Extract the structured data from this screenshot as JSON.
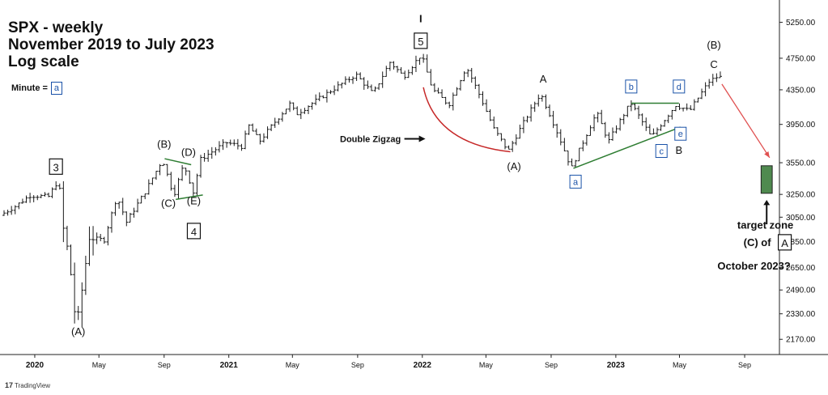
{
  "info": {
    "line1": "SPX - weekly",
    "line2": "November 2019 to July 2023",
    "line3": "Log scale",
    "minute_label": "Minute =",
    "minute_box": "a"
  },
  "colors": {
    "bars": "#1a1a1a",
    "green_line": "#2e7d32",
    "red_arc": "#c62828",
    "red_arrow": "#e05050",
    "target_box": "#4f8a4f",
    "blue_box": "#1a52a8"
  },
  "icons": {
    "double_zigzag_arrow": "arrow-right",
    "target_arrow": "arrow-up",
    "logo": "tradingview-logo"
  },
  "footer": {
    "logo_text": "TradingView",
    "logo_mark": "17"
  },
  "chart_data": {
    "type": "ohlc",
    "title": "SPX - weekly",
    "subtitle": "November 2019 to July 2023",
    "y_scale": "log",
    "ylim": [
      2080,
      5450
    ],
    "y_ticks": [
      "5250.00",
      "4750.00",
      "4350.00",
      "3950.00",
      "3550.00",
      "3250.00",
      "3050.00",
      "2850.00",
      "2650.00",
      "2490.00",
      "2330.00",
      "2170.00"
    ],
    "x_ticks": [
      {
        "label": "2020",
        "date": "2020-01-01"
      },
      {
        "label": "May",
        "date": "2020-05-01"
      },
      {
        "label": "Sep",
        "date": "2020-09-01"
      },
      {
        "label": "2021",
        "date": "2021-01-01"
      },
      {
        "label": "May",
        "date": "2021-05-01"
      },
      {
        "label": "Sep",
        "date": "2021-09-01"
      },
      {
        "label": "2022",
        "date": "2022-01-01"
      },
      {
        "label": "May",
        "date": "2022-05-01"
      },
      {
        "label": "Sep",
        "date": "2022-09-01"
      },
      {
        "label": "2023",
        "date": "2023-01-01"
      },
      {
        "label": "May",
        "date": "2023-05-01"
      },
      {
        "label": "Sep",
        "date": "2023-09-01"
      }
    ],
    "grid": false,
    "price_path": [
      [
        "2019-11-01",
        3066
      ],
      [
        "2019-12-01",
        3150
      ],
      [
        "2019-12-27",
        3240
      ],
      [
        "2020-01-31",
        3230
      ],
      [
        "2020-02-19",
        3386
      ],
      [
        "2020-02-28",
        2954
      ],
      [
        "2020-03-09",
        2746
      ],
      [
        "2020-03-23",
        2237
      ],
      [
        "2020-04-03",
        2489
      ],
      [
        "2020-04-17",
        2875
      ],
      [
        "2020-05-15",
        2863
      ],
      [
        "2020-06-08",
        3232
      ],
      [
        "2020-06-26",
        3009
      ],
      [
        "2020-07-31",
        3271
      ],
      [
        "2020-09-02",
        3580
      ],
      [
        "2020-09-23",
        3237
      ],
      [
        "2020-10-12",
        3534
      ],
      [
        "2020-10-30",
        3270
      ],
      [
        "2020-11-13",
        3585
      ],
      [
        "2020-12-31",
        3756
      ],
      [
        "2021-01-29",
        3714
      ],
      [
        "2021-02-12",
        3934
      ],
      [
        "2021-03-04",
        3768
      ],
      [
        "2021-04-30",
        4181
      ],
      [
        "2021-05-12",
        4063
      ],
      [
        "2021-07-30",
        4395
      ],
      [
        "2021-09-02",
        4537
      ],
      [
        "2021-10-04",
        4300
      ],
      [
        "2021-11-05",
        4697
      ],
      [
        "2021-12-01",
        4513
      ],
      [
        "2022-01-03",
        4796
      ],
      [
        "2022-01-24",
        4356
      ],
      [
        "2022-02-24",
        4170
      ],
      [
        "2022-03-29",
        4637
      ],
      [
        "2022-05-20",
        3900
      ],
      [
        "2022-06-16",
        3666
      ],
      [
        "2022-08-16",
        4305
      ],
      [
        "2022-10-13",
        3491
      ],
      [
        "2022-11-30",
        4080
      ],
      [
        "2022-12-22",
        3764
      ],
      [
        "2023-02-02",
        4195
      ],
      [
        "2023-03-13",
        3808
      ],
      [
        "2023-04-28",
        4169
      ],
      [
        "2023-05-24",
        4100
      ],
      [
        "2023-06-30",
        4450
      ],
      [
        "2023-07-14",
        4505
      ]
    ],
    "ohlc_note": "",
    "annotations": {
      "black_labels": [
        {
          "text": "I",
          "date": "2021-12-29",
          "price": 5250
        },
        {
          "text": "(B)",
          "date": "2020-09-01",
          "price": 3700
        },
        {
          "text": "(D)",
          "date": "2020-10-17",
          "price": 3620
        },
        {
          "text": "(C)",
          "date": "2020-09-09",
          "price": 3140
        },
        {
          "text": "(E)",
          "date": "2020-10-27",
          "price": 3160
        },
        {
          "text": "(A)",
          "date": "2020-03-23",
          "price": 2195
        },
        {
          "text": "A",
          "date": "2022-08-17",
          "price": 4440
        },
        {
          "text": "(A)",
          "date": "2022-06-23",
          "price": 3480
        },
        {
          "text": "(B)",
          "date": "2023-07-05",
          "price": 4880
        },
        {
          "text": "C",
          "date": "2023-07-05",
          "price": 4620
        },
        {
          "text": "B",
          "date": "2023-04-30",
          "price": 3640
        }
      ],
      "boxed_labels": [
        {
          "text": "3",
          "date": "2020-02-10",
          "price": 3500
        },
        {
          "text": "4",
          "date": "2020-10-27",
          "price": 2925
        },
        {
          "text": "5",
          "date": "2021-12-29",
          "price": 4970
        }
      ],
      "blue_box_labels": [
        {
          "text": "a",
          "date": "2022-10-17",
          "price": 3360
        },
        {
          "text": "b",
          "date": "2023-01-30",
          "price": 4380
        },
        {
          "text": "c",
          "date": "2023-03-28",
          "price": 3660
        },
        {
          "text": "d",
          "date": "2023-04-30",
          "price": 4380
        },
        {
          "text": "e",
          "date": "2023-05-03",
          "price": 3840
        }
      ],
      "double_zigzag_text": "Double Zigzag",
      "target_lines": [
        "target zone",
        "(C) of",
        "October 2023?"
      ],
      "target_box_label": "A",
      "target_zone_prices": [
        3260,
        3520
      ],
      "target_zone_dates": [
        "2023-10-02",
        "2023-10-23"
      ]
    }
  }
}
